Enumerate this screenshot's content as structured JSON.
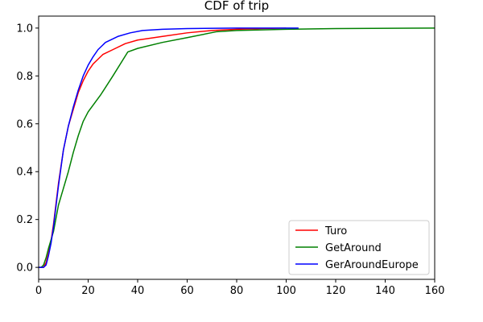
{
  "chart_data": {
    "type": "line",
    "title": "CDF of trip",
    "xlabel": "",
    "ylabel": "",
    "xlim": [
      0,
      160
    ],
    "ylim": [
      -0.05,
      1.05
    ],
    "xticks": [
      0,
      20,
      40,
      60,
      80,
      100,
      120,
      140,
      160
    ],
    "yticks": [
      0.0,
      0.2,
      0.4,
      0.6,
      0.8,
      1.0
    ],
    "xtick_labels": [
      "0",
      "20",
      "40",
      "60",
      "80",
      "100",
      "120",
      "140",
      "160"
    ],
    "ytick_labels": [
      "0.0",
      "0.2",
      "0.4",
      "0.6",
      "0.8",
      "1.0"
    ],
    "grid": false,
    "legend_position": "lower-right",
    "series": [
      {
        "name": "Turo",
        "color": "#ff0000",
        "points": [
          [
            0,
            0.0
          ],
          [
            2,
            0.0
          ],
          [
            3,
            0.02
          ],
          [
            4,
            0.06
          ],
          [
            5,
            0.11
          ],
          [
            6,
            0.18
          ],
          [
            8,
            0.35
          ],
          [
            10,
            0.49
          ],
          [
            12,
            0.59
          ],
          [
            14,
            0.66
          ],
          [
            16,
            0.73
          ],
          [
            18,
            0.78
          ],
          [
            20,
            0.82
          ],
          [
            22,
            0.85
          ],
          [
            24,
            0.87
          ],
          [
            26,
            0.89
          ],
          [
            30,
            0.91
          ],
          [
            35,
            0.935
          ],
          [
            40,
            0.95
          ],
          [
            50,
            0.965
          ],
          [
            60,
            0.98
          ],
          [
            70,
            0.99
          ],
          [
            80,
            0.995
          ],
          [
            90,
            0.998
          ],
          [
            100,
            1.0
          ]
        ]
      },
      {
        "name": "GetAround",
        "color": "#008000",
        "points": [
          [
            0,
            0.0
          ],
          [
            1,
            0.0
          ],
          [
            2,
            0.01
          ],
          [
            3,
            0.04
          ],
          [
            4,
            0.08
          ],
          [
            6,
            0.15
          ],
          [
            8,
            0.26
          ],
          [
            10,
            0.33
          ],
          [
            12,
            0.4
          ],
          [
            14,
            0.48
          ],
          [
            16,
            0.55
          ],
          [
            18,
            0.61
          ],
          [
            20,
            0.65
          ],
          [
            25,
            0.72
          ],
          [
            30,
            0.8
          ],
          [
            36,
            0.9
          ],
          [
            40,
            0.915
          ],
          [
            50,
            0.94
          ],
          [
            60,
            0.96
          ],
          [
            72,
            0.985
          ],
          [
            80,
            0.99
          ],
          [
            100,
            0.995
          ],
          [
            120,
            0.998
          ],
          [
            160,
            1.0
          ]
        ]
      },
      {
        "name": "GerAroundEurope",
        "color": "#0000ff",
        "points": [
          [
            0,
            0.0
          ],
          [
            2,
            0.0
          ],
          [
            3,
            0.01
          ],
          [
            4,
            0.05
          ],
          [
            5,
            0.1
          ],
          [
            6,
            0.17
          ],
          [
            8,
            0.34
          ],
          [
            10,
            0.49
          ],
          [
            12,
            0.59
          ],
          [
            14,
            0.67
          ],
          [
            16,
            0.74
          ],
          [
            18,
            0.8
          ],
          [
            20,
            0.845
          ],
          [
            22,
            0.88
          ],
          [
            24,
            0.91
          ],
          [
            27,
            0.94
          ],
          [
            32,
            0.965
          ],
          [
            37,
            0.98
          ],
          [
            42,
            0.99
          ],
          [
            50,
            0.995
          ],
          [
            60,
            0.998
          ],
          [
            80,
            1.0
          ],
          [
            105,
            1.0
          ]
        ]
      }
    ]
  }
}
